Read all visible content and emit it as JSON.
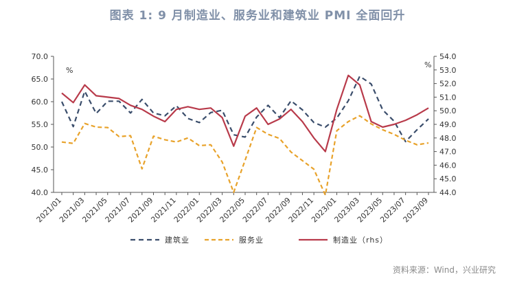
{
  "title": "图表 1:  9 月制造业、服务业和建筑业 PMI 全面回升",
  "source": "资料来源：Wind，兴业研究",
  "chart_data": {
    "type": "line",
    "y_left_unit": "%",
    "y_right_unit": "%",
    "ylim_left": [
      40,
      70
    ],
    "ylim_right": [
      44,
      54
    ],
    "yticks_left": [
      "40.0",
      "45.0",
      "50.0",
      "55.0",
      "60.0",
      "65.0",
      "70.0"
    ],
    "yticks_right": [
      "44.0",
      "45.0",
      "46.0",
      "47.0",
      "48.0",
      "49.0",
      "50.0",
      "51.0",
      "52.0",
      "53.0",
      "54.0"
    ],
    "x": [
      "2021/01",
      "2021/02",
      "2021/03",
      "2021/04",
      "2021/05",
      "2021/06",
      "2021/07",
      "2021/08",
      "2021/09",
      "2021/10",
      "2021/11",
      "2021/12",
      "2022/01",
      "2022/02",
      "2022/03",
      "2022/04",
      "2022/05",
      "2022/06",
      "2022/07",
      "2022/08",
      "2022/09",
      "2022/10",
      "2022/11",
      "2022/12",
      "2023/01",
      "2023/02",
      "2023/03",
      "2023/04",
      "2023/05",
      "2023/06",
      "2023/07",
      "2023/08",
      "2023/09"
    ],
    "xtick_labels": [
      "2021/01",
      "2021/03",
      "2021/05",
      "2021/07",
      "2021/09",
      "2021/11",
      "2022/01",
      "2022/03",
      "2022/05",
      "2022/07",
      "2022/09",
      "2022/11",
      "2023/01",
      "2023/03",
      "2023/05",
      "2023/07",
      "2023/09"
    ],
    "series": [
      {
        "name": "建筑业",
        "axis": "left",
        "color": "#3a4d6b",
        "dash": "7,5",
        "values": [
          60.0,
          54.5,
          62.3,
          57.4,
          60.1,
          60.1,
          57.5,
          60.5,
          57.5,
          56.9,
          59.1,
          56.3,
          55.4,
          57.6,
          58.1,
          52.7,
          52.2,
          56.6,
          59.2,
          56.5,
          60.2,
          58.2,
          55.4,
          54.4,
          56.4,
          60.2,
          65.6,
          63.9,
          58.2,
          55.7,
          51.2,
          53.8,
          56.2
        ]
      },
      {
        "name": "服务业",
        "axis": "left",
        "color": "#e8a22a",
        "dash": "6,4",
        "values": [
          51.1,
          50.8,
          55.2,
          54.4,
          54.3,
          52.3,
          52.5,
          45.2,
          52.4,
          51.6,
          51.1,
          52.0,
          50.3,
          50.5,
          46.7,
          40.0,
          47.1,
          54.3,
          52.8,
          51.9,
          48.9,
          47.0,
          45.1,
          39.4,
          53.6,
          55.6,
          56.9,
          55.1,
          53.8,
          52.8,
          51.5,
          50.5,
          50.9
        ]
      },
      {
        "name": "制造业(rhs)",
        "axis": "right",
        "color": "#b83a4a",
        "dash": "",
        "values": [
          51.3,
          50.6,
          51.9,
          51.1,
          51.0,
          50.9,
          50.4,
          50.1,
          49.6,
          49.2,
          50.1,
          50.3,
          50.1,
          50.2,
          49.5,
          47.4,
          49.6,
          50.2,
          49.0,
          49.4,
          50.1,
          49.2,
          48.0,
          47.0,
          50.1,
          52.6,
          51.9,
          49.2,
          48.8,
          49.0,
          49.3,
          49.7,
          50.2
        ]
      }
    ],
    "legend": [
      "建筑业",
      "服务业",
      "制造业（rhs）"
    ],
    "legend_position": "bottom"
  }
}
